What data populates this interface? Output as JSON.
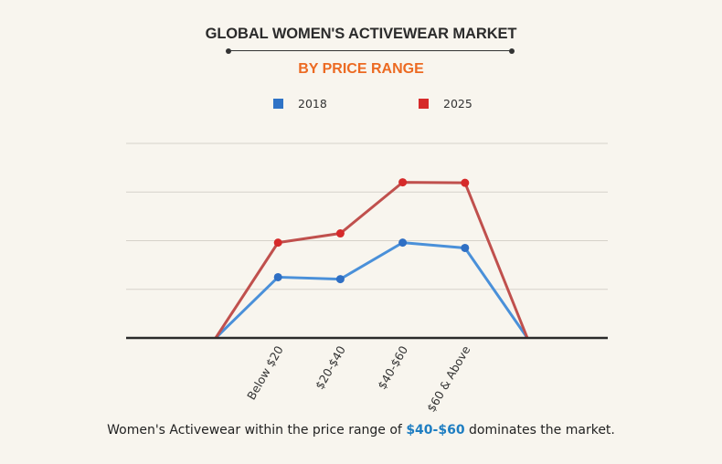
{
  "header": {
    "title": "GLOBAL WOMEN'S ACTIVEWEAR MARKET",
    "subtitle": "BY PRICE RANGE"
  },
  "caption": {
    "before": "Women's Activewear within the price range of ",
    "highlight": "$40-$60",
    "after": " dominates the market."
  },
  "colors": {
    "title": "#2b2b2b",
    "subtitle": "#ec6a22",
    "series_2018": "#4a90d9",
    "series_2025": "#c0504d",
    "marker_2018": "#2f6fc4",
    "marker_2025": "#d62a2a",
    "highlight": "#1f7ec2",
    "grid": "#d6d2ca",
    "axis": "#2a2a2a"
  },
  "chart_data": {
    "type": "line",
    "title": "GLOBAL WOMEN'S ACTIVEWEAR MARKET",
    "subtitle": "BY PRICE RANGE",
    "xlabel": "",
    "ylabel": "",
    "y_unit": "relative (gridline units, no axis labels shown)",
    "ylim": [
      0,
      4
    ],
    "grid": true,
    "legend_position": "top",
    "categories": [
      "",
      "Below $20",
      "$20-$40",
      "$40-$60",
      "$60 & Above",
      ""
    ],
    "series": [
      {
        "name": "2018",
        "values": [
          0,
          1.25,
          1.21,
          1.96,
          1.85,
          0
        ],
        "markers": [
          false,
          true,
          true,
          true,
          true,
          false
        ]
      },
      {
        "name": "2025",
        "values": [
          0,
          1.96,
          2.15,
          3.2,
          3.19,
          0
        ],
        "markers": [
          false,
          true,
          true,
          true,
          true,
          false
        ]
      }
    ]
  }
}
